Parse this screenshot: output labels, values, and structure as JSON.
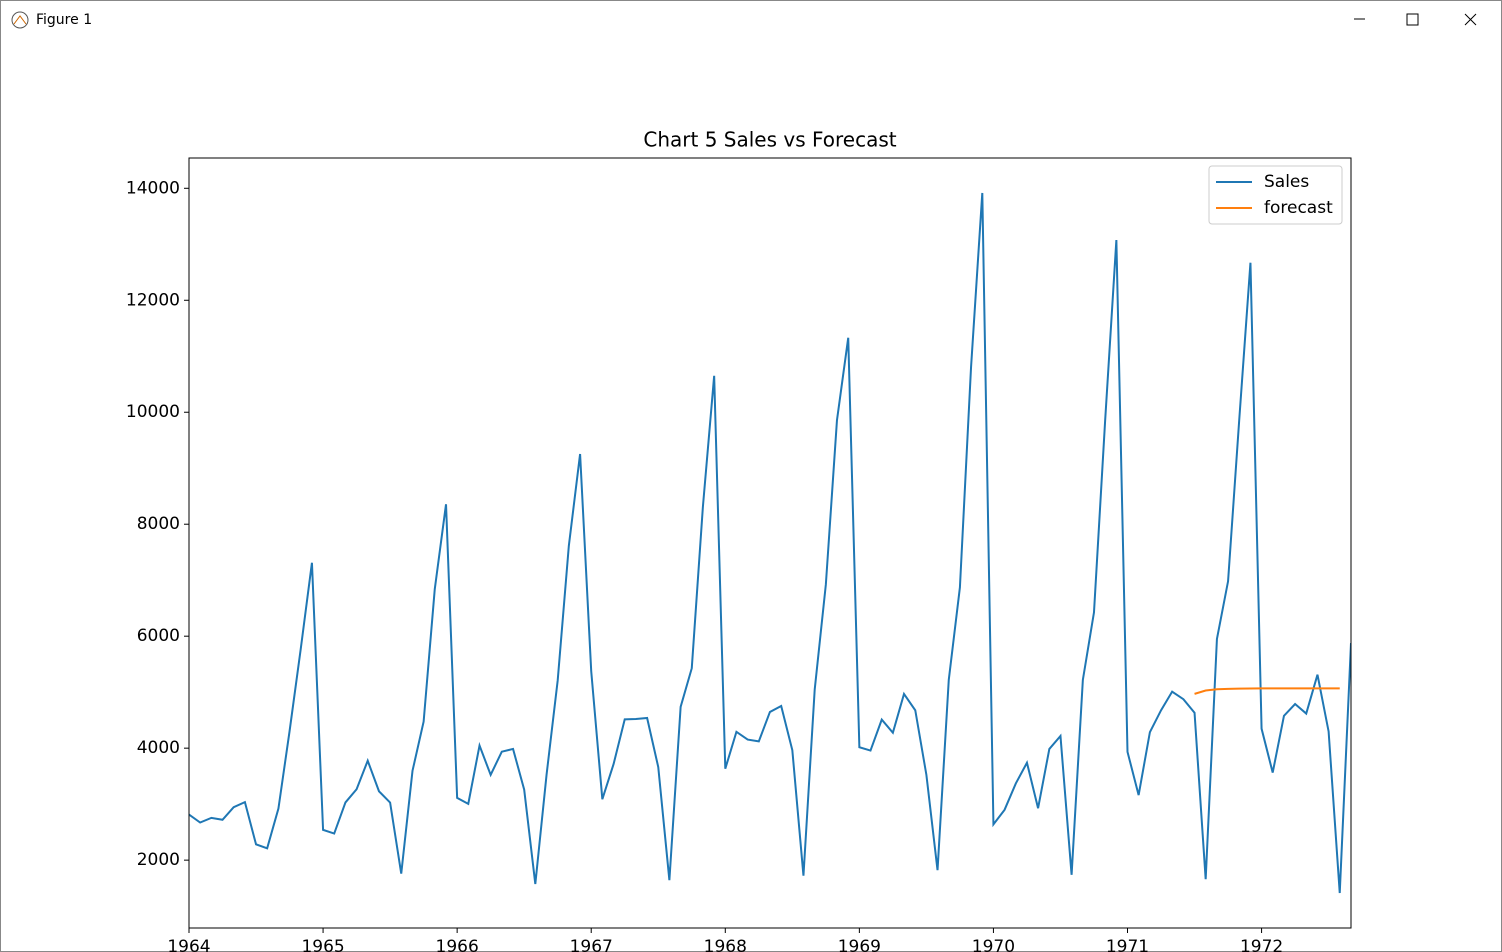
{
  "window": {
    "title": "Figure 1"
  },
  "chart_data": {
    "type": "line",
    "title": "Chart 5 Sales vs Forecast",
    "xlim": [
      1964,
      1972.667
    ],
    "xticks": [
      1964,
      1965,
      1966,
      1967,
      1968,
      1969,
      1970,
      1971,
      1972
    ],
    "ylim": [
      788,
      14541
    ],
    "yticks": [
      2000,
      4000,
      6000,
      8000,
      10000,
      12000,
      14000
    ],
    "legend": "upper right",
    "series": [
      {
        "name": "Sales",
        "color": "#1f77b4",
        "x": [
          1964,
          1964.083,
          1964.167,
          1964.25,
          1964.333,
          1964.417,
          1964.5,
          1964.583,
          1964.667,
          1964.75,
          1964.833,
          1964.917,
          1965,
          1965.083,
          1965.167,
          1965.25,
          1965.333,
          1965.417,
          1965.5,
          1965.583,
          1965.667,
          1965.75,
          1965.833,
          1965.917,
          1966,
          1966.083,
          1966.167,
          1966.25,
          1966.333,
          1966.417,
          1966.5,
          1966.583,
          1966.667,
          1966.75,
          1966.833,
          1966.917,
          1967,
          1967.083,
          1967.167,
          1967.25,
          1967.333,
          1967.417,
          1967.5,
          1967.583,
          1967.667,
          1967.75,
          1967.833,
          1967.917,
          1968,
          1968.083,
          1968.167,
          1968.25,
          1968.333,
          1968.417,
          1968.5,
          1968.583,
          1968.667,
          1968.75,
          1968.833,
          1968.917,
          1969,
          1969.083,
          1969.167,
          1969.25,
          1969.333,
          1969.417,
          1969.5,
          1969.583,
          1969.667,
          1969.75,
          1969.833,
          1969.917,
          1970,
          1970.083,
          1970.167,
          1970.25,
          1970.333,
          1970.417,
          1970.5,
          1970.583,
          1970.667,
          1970.75,
          1970.833,
          1970.917,
          1971,
          1971.083,
          1971.167,
          1971.25,
          1971.333,
          1971.417,
          1971.5,
          1971.583,
          1971.667,
          1971.75,
          1971.833,
          1971.917,
          1972,
          1972.083,
          1972.167,
          1972.25,
          1972.333,
          1972.417,
          1972.5,
          1972.583,
          1972.667
        ],
        "values": [
          2815,
          2672,
          2755,
          2721,
          2946,
          3036,
          2282,
          2212,
          2922,
          4301,
          5764,
          7312,
          2541,
          2475,
          3031,
          3266,
          3776,
          3230,
          3028,
          1759,
          3595,
          4474,
          6838,
          8357,
          3113,
          3006,
          4047,
          3523,
          3937,
          3986,
          3260,
          1573,
          3528,
          5211,
          7614,
          9254,
          5375,
          3088,
          3718,
          4514,
          4520,
          4539,
          3663,
          1643,
          4739,
          5428,
          8314,
          10651,
          3633,
          4292,
          4154,
          4121,
          4647,
          4753,
          3965,
          1723,
          5048,
          6922,
          9858,
          11331,
          4016,
          3957,
          4510,
          4276,
          4968,
          4677,
          3523,
          1821,
          5222,
          6872,
          10803,
          13916,
          2639,
          2899,
          3370,
          3740,
          2927,
          3986,
          4217,
          1738,
          5221,
          6424,
          9842,
          13076,
          3934,
          3162,
          4286,
          4676,
          5010,
          4874,
          4633,
          1659,
          5951,
          6981,
          9851,
          12670,
          4348,
          3564,
          4577,
          4788,
          4618,
          5312,
          4298,
          1413,
          5877
        ]
      },
      {
        "name": "forecast",
        "color": "#ff7f0e",
        "x": [
          1971.5,
          1971.583,
          1971.667,
          1971.75,
          1971.833,
          1971.917,
          1972,
          1972.083,
          1972.167,
          1972.25,
          1972.333,
          1972.417,
          1972.5,
          1972.583
        ],
        "values": [
          4970,
          5030,
          5052,
          5060,
          5064,
          5066,
          5067,
          5067,
          5068,
          5068,
          5068,
          5068,
          5068,
          5068
        ]
      }
    ]
  }
}
